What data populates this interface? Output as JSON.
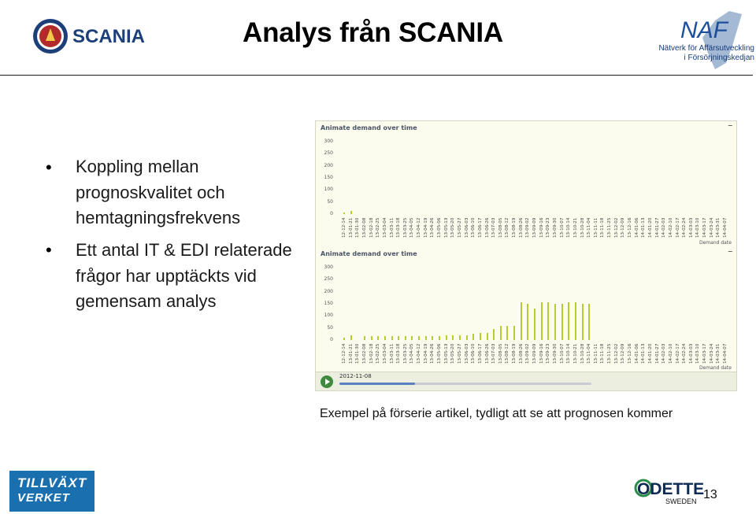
{
  "header": {
    "title": "Analys från SCANIA",
    "scania_logo_text": "SCANIA",
    "naf_logo_text": "NAF",
    "naf_line1": "Nätverk för Affärsutveckling",
    "naf_line2": "i Försörjningskedjan"
  },
  "bullets": [
    "Koppling mellan prognoskvalitet och hemtagningsfrekvens",
    "Ett antal IT & EDI relaterade frågor har upptäckts vid gemensam analys"
  ],
  "app": {
    "panel_title": "Animate demand over time",
    "minimize": "–",
    "x_axis_label": "Demand date",
    "slider_date": "2012-11-08",
    "slider_progress": 0.3
  },
  "chart_data": [
    {
      "type": "bar",
      "title": "Animate demand over time",
      "xlabel": "Demand date",
      "ylim": [
        0,
        300
      ],
      "yticks": [
        0,
        50,
        100,
        150,
        200,
        250,
        300
      ],
      "categories": [
        "12-12-14",
        "13-01-21",
        "13-01-30",
        "13-02-08",
        "13-02-18",
        "13-02-25",
        "13-03-04",
        "13-03-11",
        "13-03-18",
        "13-03-25",
        "13-04-05",
        "13-04-12",
        "13-04-19",
        "13-04-26",
        "13-05-06",
        "13-05-13",
        "13-05-20",
        "13-05-27",
        "13-06-03",
        "13-06-10",
        "13-06-17",
        "13-06-26",
        "13-07-03",
        "13-08-05",
        "13-08-12",
        "13-08-19",
        "13-08-26",
        "13-09-02",
        "13-09-09",
        "13-09-16",
        "13-09-23",
        "13-09-30",
        "13-10-07",
        "13-10-14",
        "13-10-21",
        "13-10-28",
        "13-11-04",
        "13-11-11",
        "13-11-18",
        "13-11-25",
        "13-12-02",
        "13-12-09",
        "13-12-16",
        "14-01-06",
        "14-01-13",
        "14-01-20",
        "14-01-27",
        "14-02-03",
        "14-02-10",
        "14-02-17",
        "14-02-24",
        "14-03-03",
        "14-03-10",
        "14-03-17",
        "14-03-24",
        "14-03-31",
        "14-04-07"
      ],
      "values": [
        5,
        14,
        0,
        0,
        0,
        0,
        0,
        0,
        0,
        0,
        0,
        0,
        0,
        0,
        0,
        0,
        0,
        0,
        0,
        0,
        0,
        0,
        0,
        0,
        0,
        0,
        0,
        0,
        0,
        0,
        0,
        0,
        0,
        0,
        0,
        0,
        0,
        0,
        0,
        0,
        0,
        0,
        0,
        0,
        0,
        0,
        0,
        0,
        0,
        0,
        0,
        0,
        0,
        0,
        0,
        0,
        0
      ]
    },
    {
      "type": "bar",
      "title": "Animate demand over time",
      "xlabel": "Demand date",
      "ylim": [
        0,
        300
      ],
      "yticks": [
        0,
        50,
        100,
        150,
        200,
        250,
        300
      ],
      "categories": [
        "12-12-14",
        "13-01-21",
        "13-01-30",
        "13-02-08",
        "13-02-18",
        "13-02-25",
        "13-03-04",
        "13-03-11",
        "13-03-18",
        "13-03-25",
        "13-04-05",
        "13-04-12",
        "13-04-19",
        "13-04-26",
        "13-05-06",
        "13-05-13",
        "13-05-20",
        "13-05-27",
        "13-06-03",
        "13-06-10",
        "13-06-17",
        "13-06-26",
        "13-07-03",
        "13-08-05",
        "13-08-12",
        "13-08-19",
        "13-08-26",
        "13-09-02",
        "13-09-09",
        "13-09-16",
        "13-09-23",
        "13-09-30",
        "13-10-07",
        "13-10-14",
        "13-10-21",
        "13-10-28",
        "13-11-04",
        "13-11-11",
        "13-11-18",
        "13-11-25",
        "13-12-02",
        "13-12-09",
        "13-12-16",
        "14-01-06",
        "14-01-13",
        "14-01-20",
        "14-01-27",
        "14-02-03",
        "14-02-10",
        "14-02-17",
        "14-02-24",
        "14-03-03",
        "14-03-10",
        "14-03-17",
        "14-03-24",
        "14-03-31",
        "14-04-07"
      ],
      "values": [
        10,
        20,
        0,
        15,
        15,
        15,
        15,
        15,
        15,
        15,
        15,
        15,
        15,
        15,
        15,
        20,
        20,
        20,
        20,
        25,
        30,
        30,
        45,
        60,
        60,
        60,
        155,
        150,
        130,
        155,
        155,
        150,
        150,
        155,
        155,
        150,
        150,
        0,
        0,
        0,
        0,
        0,
        0,
        0,
        0,
        0,
        0,
        0,
        0,
        0,
        0,
        0,
        0,
        0,
        0,
        0,
        0
      ]
    }
  ],
  "caption": "Exempel på förserie artikel, tydligt att se att prognosen kommer",
  "footer": {
    "tillvaxt_line1": "TILLVÄXT",
    "tillvaxt_line2": "VERKET",
    "odette_text": "ODETTE",
    "odette_sub": "SWEDEN",
    "page_number": "13"
  },
  "colors": {
    "bar": "#b7cc33",
    "tillvaxt_bg": "#1a6fae",
    "scania_blue": "#1c3f7a"
  }
}
